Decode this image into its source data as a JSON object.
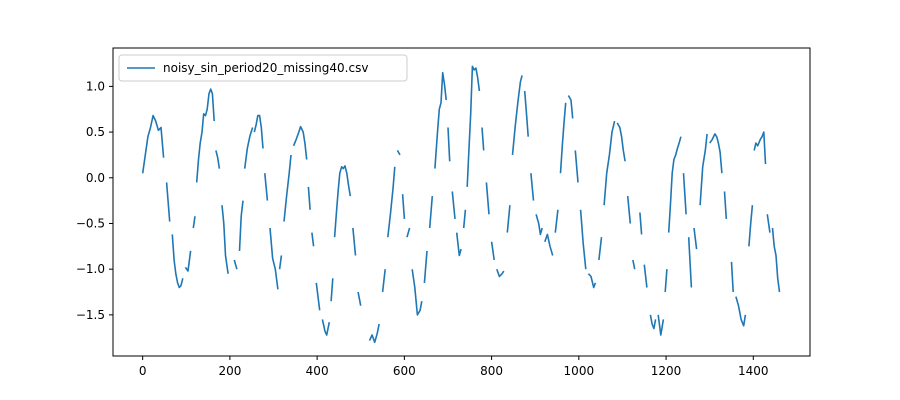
{
  "chart_data": {
    "type": "line",
    "title": "",
    "xlabel": "",
    "ylabel": "",
    "xlim": [
      -68,
      1530
    ],
    "ylim": [
      -1.95,
      1.42
    ],
    "xticks": [
      0,
      200,
      400,
      600,
      800,
      1000,
      1200,
      1400
    ],
    "xtick_labels": [
      "0",
      "200",
      "400",
      "600",
      "800",
      "1000",
      "1200",
      "1400"
    ],
    "yticks": [
      -1.5,
      -1.0,
      -0.5,
      0.0,
      0.5,
      1.0
    ],
    "ytick_labels": [
      "−1.5",
      "−1.0",
      "−0.5",
      "0.0",
      "0.5",
      "1.0"
    ],
    "grid": false,
    "legend_position": "top-left",
    "series": [
      {
        "name": "noisy_sin_period20_missing40.csv",
        "color": "#1f77b4",
        "segments": [
          {
            "x": [
              0,
              6,
              12,
              18,
              24,
              30,
              36,
              42,
              48
            ],
            "y": [
              0.05,
              0.25,
              0.45,
              0.55,
              0.68,
              0.62,
              0.52,
              0.55,
              0.22
            ]
          },
          {
            "x": [
              55,
              62
            ],
            "y": [
              -0.05,
              -0.48
            ]
          },
          {
            "x": [
              68,
              72,
              76,
              80,
              84,
              88,
              92
            ],
            "y": [
              -0.62,
              -0.9,
              -1.05,
              -1.15,
              -1.2,
              -1.18,
              -1.1
            ]
          },
          {
            "x": [
              98,
              104,
              110
            ],
            "y": [
              -0.98,
              -1.02,
              -0.8
            ]
          },
          {
            "x": [
              116,
              120
            ],
            "y": [
              -0.55,
              -0.42
            ]
          },
          {
            "x": [
              124,
              128,
              132,
              136,
              140,
              144,
              148,
              152,
              156,
              160,
              164
            ],
            "y": [
              -0.05,
              0.2,
              0.38,
              0.5,
              0.7,
              0.68,
              0.75,
              0.92,
              0.97,
              0.92,
              0.62
            ]
          },
          {
            "x": [
              168,
              172,
              176
            ],
            "y": [
              0.3,
              0.22,
              0.1
            ]
          },
          {
            "x": [
              182,
              186,
              190,
              196
            ],
            "y": [
              -0.3,
              -0.5,
              -0.85,
              -1.05
            ]
          },
          {
            "x": [
              210,
              216
            ],
            "y": [
              -0.9,
              -1.0
            ]
          },
          {
            "x": [
              222,
              226,
              230
            ],
            "y": [
              -0.8,
              -0.42,
              -0.25
            ]
          },
          {
            "x": [
              234,
              240,
              246,
              252
            ],
            "y": [
              0.1,
              0.32,
              0.46,
              0.55
            ]
          },
          {
            "x": [
              256,
              260,
              264,
              268,
              272,
              276
            ],
            "y": [
              0.5,
              0.58,
              0.68,
              0.68,
              0.55,
              0.32
            ]
          },
          {
            "x": [
              280,
              286
            ],
            "y": [
              0.05,
              -0.25
            ]
          },
          {
            "x": [
              292,
              298,
              304,
              310
            ],
            "y": [
              -0.55,
              -0.88,
              -1.0,
              -1.22
            ]
          },
          {
            "x": [
              314,
              318
            ],
            "y": [
              -1.0,
              -0.85
            ]
          },
          {
            "x": [
              324,
              330,
              336,
              340
            ],
            "y": [
              -0.48,
              -0.2,
              0.05,
              0.25
            ]
          },
          {
            "x": [
              346,
              352,
              358,
              362,
              368,
              372,
              376
            ],
            "y": [
              0.35,
              0.42,
              0.5,
              0.56,
              0.5,
              0.38,
              0.2
            ]
          },
          {
            "x": [
              380,
              384
            ],
            "y": [
              -0.1,
              -0.35
            ]
          },
          {
            "x": [
              388,
              392
            ],
            "y": [
              -0.6,
              -0.75
            ]
          },
          {
            "x": [
              398,
              402,
              406
            ],
            "y": [
              -1.15,
              -1.3,
              -1.45
            ]
          },
          {
            "x": [
              412,
              418,
              422,
              428
            ],
            "y": [
              -1.55,
              -1.68,
              -1.72,
              -1.58
            ]
          },
          {
            "x": [
              432,
              436
            ],
            "y": [
              -1.35,
              -1.1
            ]
          },
          {
            "x": [
              440,
              444,
              448,
              452,
              456,
              460,
              464,
              468,
              472,
              476
            ],
            "y": [
              -0.65,
              -0.4,
              -0.15,
              0.05,
              0.12,
              0.1,
              0.13,
              0.05,
              -0.08,
              -0.2
            ]
          },
          {
            "x": [
              482,
              488
            ],
            "y": [
              -0.55,
              -0.85
            ]
          },
          {
            "x": [
              494,
              500
            ],
            "y": [
              -1.25,
              -1.4
            ]
          },
          {
            "x": [
              520,
              526,
              532,
              538,
              542
            ],
            "y": [
              -1.78,
              -1.72,
              -1.8,
              -1.7,
              -1.6
            ]
          },
          {
            "x": [
              550,
              556
            ],
            "y": [
              -1.25,
              -1.0
            ]
          },
          {
            "x": [
              562,
              568,
              574,
              578
            ],
            "y": [
              -0.65,
              -0.4,
              -0.12,
              0.12
            ]
          },
          {
            "x": [
              584,
              590
            ],
            "y": [
              0.3,
              0.25
            ]
          },
          {
            "x": [
              596,
              600
            ],
            "y": [
              -0.18,
              -0.45
            ]
          },
          {
            "x": [
              606,
              612
            ],
            "y": [
              -0.65,
              -0.55
            ]
          },
          {
            "x": [
              618,
              624,
              630,
              636,
              640
            ],
            "y": [
              -1.0,
              -1.2,
              -1.5,
              -1.45,
              -1.35
            ]
          },
          {
            "x": [
              646,
              652
            ],
            "y": [
              -1.15,
              -0.8
            ]
          },
          {
            "x": [
              658,
              664
            ],
            "y": [
              -0.55,
              -0.2
            ]
          },
          {
            "x": [
              670,
              676,
              680,
              684,
              688,
              692,
              696
            ],
            "y": [
              0.1,
              0.5,
              0.75,
              0.82,
              1.15,
              1.02,
              0.85
            ]
          },
          {
            "x": [
              700,
              704
            ],
            "y": [
              0.55,
              0.18
            ]
          },
          {
            "x": [
              710,
              716
            ],
            "y": [
              -0.15,
              -0.45
            ]
          },
          {
            "x": [
              720,
              726,
              730
            ],
            "y": [
              -0.6,
              -0.85,
              -0.78
            ]
          },
          {
            "x": [
              736,
              740
            ],
            "y": [
              -0.55,
              -0.35
            ]
          },
          {
            "x": [
              744,
              748,
              752,
              756,
              760,
              764,
              768,
              772
            ],
            "y": [
              -0.1,
              0.3,
              0.7,
              1.22,
              1.18,
              1.2,
              1.1,
              0.95
            ]
          },
          {
            "x": [
              778,
              782
            ],
            "y": [
              0.55,
              0.3
            ]
          },
          {
            "x": [
              788,
              794
            ],
            "y": [
              -0.05,
              -0.4
            ]
          },
          {
            "x": [
              800,
              806
            ],
            "y": [
              -0.7,
              -0.9
            ]
          },
          {
            "x": [
              812,
              818,
              824,
              828
            ],
            "y": [
              -1.0,
              -1.08,
              -1.05,
              -1.02
            ]
          },
          {
            "x": [
              836,
              842
            ],
            "y": [
              -0.6,
              -0.3
            ]
          },
          {
            "x": [
              848,
              854,
              860,
              866,
              870
            ],
            "y": [
              0.25,
              0.55,
              0.82,
              1.05,
              1.12
            ]
          },
          {
            "x": [
              876,
              880,
              884
            ],
            "y": [
              0.95,
              0.7,
              0.45
            ]
          },
          {
            "x": [
              890,
              896
            ],
            "y": [
              0.05,
              -0.25
            ]
          },
          {
            "x": [
              902,
              908,
              912,
              916
            ],
            "y": [
              -0.4,
              -0.5,
              -0.62,
              -0.55
            ]
          },
          {
            "x": [
              922,
              928,
              934,
              940
            ],
            "y": [
              -0.7,
              -0.62,
              -0.75,
              -0.85
            ]
          },
          {
            "x": [
              946,
              952
            ],
            "y": [
              -0.6,
              -0.35
            ]
          },
          {
            "x": [
              958,
              962,
              966,
              970
            ],
            "y": [
              0.05,
              0.35,
              0.6,
              0.82
            ]
          },
          {
            "x": [
              976,
              982,
              986
            ],
            "y": [
              0.9,
              0.85,
              0.65
            ]
          },
          {
            "x": [
              992,
              998
            ],
            "y": [
              0.3,
              -0.05
            ]
          },
          {
            "x": [
              1004,
              1010,
              1016
            ],
            "y": [
              -0.35,
              -0.72,
              -1.0
            ]
          },
          {
            "x": [
              1022,
              1028,
              1034,
              1038
            ],
            "y": [
              -1.05,
              -1.08,
              -1.2,
              -1.15
            ]
          },
          {
            "x": [
              1046,
              1052
            ],
            "y": [
              -0.9,
              -0.65
            ]
          },
          {
            "x": [
              1058,
              1064,
              1070,
              1076,
              1082
            ],
            "y": [
              -0.3,
              0.05,
              0.25,
              0.5,
              0.62
            ]
          },
          {
            "x": [
              1088,
              1094,
              1098,
              1102,
              1106
            ],
            "y": [
              0.6,
              0.55,
              0.45,
              0.3,
              0.18
            ]
          },
          {
            "x": [
              1112,
              1118
            ],
            "y": [
              -0.2,
              -0.5
            ]
          },
          {
            "x": [
              1124,
              1128
            ],
            "y": [
              -0.9,
              -1.0
            ]
          },
          {
            "x": [
              1140,
              1144
            ],
            "y": [
              -0.38,
              -0.62
            ]
          },
          {
            "x": [
              1150,
              1156
            ],
            "y": [
              -0.95,
              -1.2
            ]
          },
          {
            "x": [
              1164,
              1168,
              1172,
              1176
            ],
            "y": [
              -1.5,
              -1.6,
              -1.65,
              -1.55
            ]
          },
          {
            "x": [
              1182,
              1188,
              1194
            ],
            "y": [
              -1.5,
              -1.72,
              -1.55
            ]
          },
          {
            "x": [
              1198,
              1202
            ],
            "y": [
              -1.25,
              -1.0
            ]
          },
          {
            "x": [
              1206,
              1210,
              1214,
              1218,
              1222,
              1226,
              1230,
              1234
            ],
            "y": [
              -0.6,
              -0.3,
              0.05,
              0.2,
              0.25,
              0.32,
              0.38,
              0.45
            ]
          },
          {
            "x": [
              1240,
              1246
            ],
            "y": [
              0.05,
              -0.4
            ]
          },
          {
            "x": [
              1252,
              1258
            ],
            "y": [
              -0.65,
              -1.2
            ]
          },
          {
            "x": [
              1264,
              1270
            ],
            "y": [
              -0.55,
              -0.78
            ]
          },
          {
            "x": [
              1278,
              1284,
              1290,
              1294
            ],
            "y": [
              -0.3,
              0.12,
              0.3,
              0.48
            ]
          },
          {
            "x": [
              1300,
              1306,
              1312,
              1316,
              1320,
              1324,
              1328
            ],
            "y": [
              0.38,
              0.42,
              0.48,
              0.45,
              0.38,
              0.28,
              0.05
            ]
          },
          {
            "x": [
              1334,
              1338
            ],
            "y": [
              -0.15,
              -0.45
            ]
          },
          {
            "x": [
              1350,
              1354
            ],
            "y": [
              -0.92,
              -1.25
            ]
          },
          {
            "x": [
              1360,
              1366,
              1372,
              1378,
              1382
            ],
            "y": [
              -1.3,
              -1.4,
              -1.55,
              -1.62,
              -1.5
            ]
          },
          {
            "x": [
              1390,
              1394,
              1398
            ],
            "y": [
              -0.75,
              -0.5,
              -0.3
            ]
          },
          {
            "x": [
              1402,
              1406,
              1410,
              1416,
              1420,
              1424,
              1428
            ],
            "y": [
              0.3,
              0.38,
              0.35,
              0.42,
              0.45,
              0.5,
              0.15
            ]
          },
          {
            "x": [
              1432,
              1438
            ],
            "y": [
              -0.4,
              -0.6
            ]
          },
          {
            "x": [
              1444,
              1448,
              1452,
              1456,
              1460
            ],
            "y": [
              -0.55,
              -0.75,
              -0.85,
              -1.1,
              -1.25
            ]
          }
        ]
      }
    ]
  }
}
